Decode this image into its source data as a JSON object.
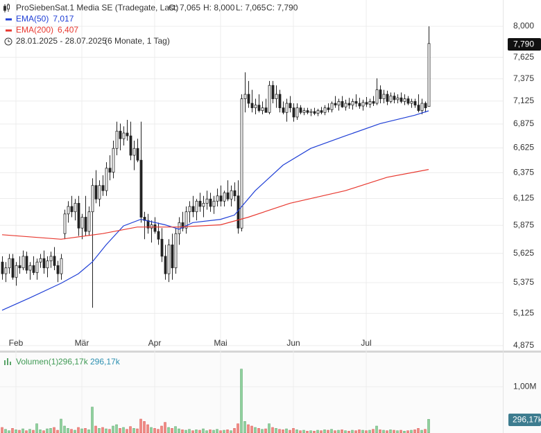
{
  "chart_data": [
    {
      "type": "candlestick",
      "title": "ProSiebenSat.1 Media SE (Tradegate, Last)",
      "ohlc_labels": [
        "O: 7,065",
        "H: 8,000",
        "L: 7,065",
        "C: 7,790"
      ],
      "date_range": "28.01.2025 - 28.07.2025",
      "period": "(6 Monate, 1 Tag)",
      "last_price_label": "7,790",
      "log_scale": true,
      "grid": true,
      "up_color": "#ffffff",
      "down_color": "#222222",
      "xlim": [
        -0.6,
        144.4
      ],
      "xticks": [
        {
          "value": 4,
          "label": "Feb"
        },
        {
          "value": 23,
          "label": "Mär"
        },
        {
          "value": 44,
          "label": "Apr"
        },
        {
          "value": 63,
          "label": "Mai"
        },
        {
          "value": 84,
          "label": "Jun"
        },
        {
          "value": 105,
          "label": "Jul"
        }
      ],
      "ylim": [
        4.843,
        8.334
      ],
      "yticks": [
        {
          "value": 8,
          "label": "8,000"
        },
        {
          "value": 7.625,
          "label": "7,625"
        },
        {
          "value": 7.375,
          "label": "7,375"
        },
        {
          "value": 7.125,
          "label": "7,125"
        },
        {
          "value": 6.875,
          "label": "6,875"
        },
        {
          "value": 6.625,
          "label": "6,625"
        },
        {
          "value": 6.375,
          "label": "6,375"
        },
        {
          "value": 6.125,
          "label": "6,125"
        },
        {
          "value": 5.875,
          "label": "5,875"
        },
        {
          "value": 5.625,
          "label": "5,625"
        },
        {
          "value": 5.375,
          "label": "5,375"
        },
        {
          "value": 5.125,
          "label": "5,125"
        },
        {
          "value": 4.875,
          "label": "4,875"
        }
      ],
      "ohlc": [
        [
          5.55,
          5.6,
          5.4,
          5.45
        ],
        [
          5.45,
          5.55,
          5.38,
          5.5
        ],
        [
          5.5,
          5.62,
          5.45,
          5.58
        ],
        [
          5.58,
          5.62,
          5.4,
          5.42
        ],
        [
          5.42,
          5.55,
          5.35,
          5.52
        ],
        [
          5.52,
          5.6,
          5.45,
          5.5
        ],
        [
          5.5,
          5.65,
          5.48,
          5.6
        ],
        [
          5.6,
          5.64,
          5.45,
          5.48
        ],
        [
          5.48,
          5.55,
          5.4,
          5.52
        ],
        [
          5.52,
          5.6,
          5.44,
          5.46
        ],
        [
          5.46,
          5.58,
          5.4,
          5.55
        ],
        [
          5.55,
          5.62,
          5.5,
          5.58
        ],
        [
          5.58,
          5.65,
          5.45,
          5.5
        ],
        [
          5.5,
          5.6,
          5.42,
          5.56
        ],
        [
          5.56,
          5.64,
          5.5,
          5.6
        ],
        [
          5.6,
          5.68,
          5.48,
          5.52
        ],
        [
          5.52,
          5.56,
          5.38,
          5.45
        ],
        [
          5.45,
          5.62,
          5.4,
          5.58
        ],
        [
          5.8,
          6.02,
          5.75,
          5.98
        ],
        [
          5.98,
          6.1,
          5.9,
          6.05
        ],
        [
          6.05,
          6.15,
          5.95,
          6.0
        ],
        [
          6.0,
          6.12,
          5.92,
          6.08
        ],
        [
          6.08,
          6.15,
          5.78,
          5.85
        ],
        [
          5.85,
          5.98,
          5.75,
          5.95
        ],
        [
          5.95,
          6.15,
          5.78,
          5.82
        ],
        [
          5.82,
          6.05,
          5.78,
          6.0
        ],
        [
          6.0,
          6.32,
          5.17,
          6.25
        ],
        [
          6.25,
          6.4,
          6.08,
          6.12
        ],
        [
          6.12,
          6.3,
          6.05,
          6.25
        ],
        [
          6.25,
          6.35,
          6.15,
          6.2
        ],
        [
          6.2,
          6.48,
          6.15,
          6.42
        ],
        [
          6.42,
          6.55,
          6.3,
          6.38
        ],
        [
          6.38,
          6.7,
          6.32,
          6.62
        ],
        [
          6.62,
          6.9,
          6.55,
          6.8
        ],
        [
          6.8,
          6.88,
          6.6,
          6.72
        ],
        [
          6.72,
          6.85,
          6.65,
          6.78
        ],
        [
          6.78,
          6.92,
          6.7,
          6.75
        ],
        [
          6.75,
          6.9,
          6.5,
          6.55
        ],
        [
          6.55,
          6.7,
          6.4,
          6.62
        ],
        [
          6.62,
          6.72,
          6.48,
          6.5
        ],
        [
          6.5,
          6.9,
          5.9,
          5.95
        ],
        [
          5.95,
          6.0,
          5.75,
          5.92
        ],
        [
          5.92,
          5.98,
          5.8,
          5.85
        ],
        [
          5.85,
          5.92,
          5.72,
          5.88
        ],
        [
          5.88,
          5.95,
          5.8,
          5.82
        ],
        [
          5.82,
          5.9,
          5.7,
          5.75
        ],
        [
          5.75,
          5.85,
          5.55,
          5.6
        ],
        [
          5.6,
          5.7,
          5.4,
          5.45
        ],
        [
          5.45,
          5.75,
          5.38,
          5.7
        ],
        [
          5.7,
          5.8,
          5.4,
          5.5
        ],
        [
          5.5,
          5.85,
          5.45,
          5.8
        ],
        [
          5.8,
          5.95,
          5.7,
          5.9
        ],
        [
          5.9,
          6.0,
          5.82,
          5.85
        ],
        [
          5.85,
          6.05,
          5.8,
          6.0
        ],
        [
          6.0,
          6.1,
          5.9,
          6.05
        ],
        [
          6.05,
          6.15,
          5.95,
          6.0
        ],
        [
          6.0,
          6.12,
          5.92,
          6.1
        ],
        [
          6.1,
          6.18,
          6.0,
          6.05
        ],
        [
          6.05,
          6.15,
          5.95,
          6.08
        ],
        [
          6.08,
          6.2,
          6.02,
          6.12
        ],
        [
          6.12,
          6.18,
          6.0,
          6.05
        ],
        [
          6.05,
          6.15,
          5.98,
          6.1
        ],
        [
          6.1,
          6.22,
          6.05,
          6.15
        ],
        [
          6.15,
          6.25,
          6.05,
          6.1
        ],
        [
          6.1,
          6.2,
          6.05,
          6.18
        ],
        [
          6.18,
          6.3,
          6.1,
          6.12
        ],
        [
          6.12,
          6.25,
          6.05,
          6.2
        ],
        [
          6.2,
          6.28,
          6.1,
          6.15
        ],
        [
          6.15,
          6.3,
          5.8,
          5.85
        ],
        [
          5.85,
          7.2,
          5.82,
          7.15
        ],
        [
          7.15,
          7.45,
          7.0,
          7.2
        ],
        [
          7.2,
          7.35,
          7.05,
          7.1
        ],
        [
          7.1,
          7.25,
          7.0,
          7.05
        ],
        [
          7.05,
          7.15,
          6.98,
          7.08
        ],
        [
          7.08,
          7.2,
          7.0,
          7.02
        ],
        [
          7.02,
          7.12,
          6.98,
          7.05
        ],
        [
          7.05,
          7.15,
          7.0,
          7.0
        ],
        [
          7.0,
          7.35,
          6.98,
          7.3
        ],
        [
          7.3,
          7.35,
          7.1,
          7.15
        ],
        [
          7.15,
          7.3,
          7.05,
          7.2
        ],
        [
          7.2,
          7.25,
          7.0,
          7.05
        ],
        [
          7.05,
          7.12,
          6.98,
          7.0
        ],
        [
          7.0,
          7.15,
          6.9,
          7.1
        ],
        [
          7.1,
          7.18,
          7.0,
          7.05
        ],
        [
          7.05,
          7.1,
          6.9,
          6.95
        ],
        [
          6.95,
          7.1,
          6.92,
          7.05
        ],
        [
          7.05,
          7.08,
          6.98,
          7.0
        ],
        [
          7.0,
          7.05,
          6.97,
          7.02
        ],
        [
          7.02,
          7.05,
          6.98,
          7.0
        ],
        [
          7.0,
          7.04,
          6.96,
          7.01
        ],
        [
          7.01,
          7.05,
          6.97,
          6.99
        ],
        [
          6.99,
          7.04,
          6.96,
          7.02
        ],
        [
          7.02,
          7.06,
          6.98,
          7.0
        ],
        [
          7.0,
          7.08,
          6.97,
          7.05
        ],
        [
          7.05,
          7.1,
          7.0,
          7.03
        ],
        [
          7.03,
          7.12,
          7.0,
          7.1
        ],
        [
          7.1,
          7.18,
          7.05,
          7.08
        ],
        [
          7.08,
          7.15,
          7.02,
          7.12
        ],
        [
          7.12,
          7.18,
          7.05,
          7.06
        ],
        [
          7.06,
          7.14,
          7.02,
          7.1
        ],
        [
          7.1,
          7.16,
          7.04,
          7.08
        ],
        [
          7.08,
          7.15,
          7.03,
          7.12
        ],
        [
          7.12,
          7.2,
          7.06,
          7.1
        ],
        [
          7.1,
          7.16,
          7.04,
          7.07
        ],
        [
          7.07,
          7.14,
          7.02,
          7.11
        ],
        [
          7.11,
          7.17,
          7.06,
          7.09
        ],
        [
          7.09,
          7.15,
          7.05,
          7.12
        ],
        [
          7.12,
          7.18,
          7.07,
          7.1
        ],
        [
          7.1,
          7.38,
          7.08,
          7.25
        ],
        [
          7.25,
          7.3,
          7.1,
          7.15
        ],
        [
          7.15,
          7.25,
          7.1,
          7.2
        ],
        [
          7.2,
          7.24,
          7.08,
          7.12
        ],
        [
          7.12,
          7.22,
          7.1,
          7.18
        ],
        [
          7.18,
          7.22,
          7.1,
          7.14
        ],
        [
          7.14,
          7.2,
          7.1,
          7.16
        ],
        [
          7.16,
          7.22,
          7.1,
          7.12
        ],
        [
          7.12,
          7.2,
          7.08,
          7.15
        ],
        [
          7.15,
          7.18,
          7.08,
          7.1
        ],
        [
          7.1,
          7.15,
          7.05,
          7.12
        ],
        [
          7.12,
          7.15,
          7.05,
          7.08
        ],
        [
          7.08,
          7.2,
          7.0,
          7.02
        ],
        [
          7.02,
          7.15,
          6.98,
          7.1
        ],
        [
          7.1,
          7.12,
          7.0,
          7.05
        ],
        [
          7.065,
          8.0,
          7.065,
          7.79
        ]
      ],
      "series": [
        {
          "name": "EMA(50)",
          "color": "#1f3fd6",
          "last_label": "7,017",
          "x": [
            0,
            8,
            17,
            22,
            26,
            30,
            35,
            40,
            47,
            51,
            55,
            63,
            67,
            73,
            81,
            89,
            99,
            109,
            119,
            123
          ],
          "values": [
            5.15,
            5.25,
            5.37,
            5.45,
            5.55,
            5.7,
            5.87,
            5.93,
            5.88,
            5.84,
            5.9,
            5.93,
            5.97,
            6.2,
            6.45,
            6.62,
            6.75,
            6.88,
            6.97,
            7.017
          ]
        },
        {
          "name": "EMA(200)",
          "color": "#e8382f",
          "last_label": "6,407",
          "x": [
            0,
            17,
            29,
            39,
            51,
            63,
            71,
            83,
            99,
            111,
            123
          ],
          "values": [
            5.79,
            5.75,
            5.8,
            5.86,
            5.86,
            5.88,
            5.95,
            6.08,
            6.2,
            6.33,
            6.407
          ]
        }
      ]
    },
    {
      "type": "volume",
      "title": "Volumen(1)",
      "legend_value": "296,17k",
      "legend_value_2": "296,17k",
      "axis_value_label": "296,17k",
      "up_color": "#8fd19e",
      "down_color": "#f08a84",
      "xlim": [
        -0.6,
        144.4
      ],
      "ylim": [
        0,
        1.69
      ],
      "yticks": [
        {
          "value": 1,
          "label": "1,00M"
        }
      ],
      "values": [
        0.12,
        0.08,
        0.05,
        0.1,
        0.07,
        0.06,
        0.09,
        0.05,
        0.08,
        0.06,
        0.2,
        0.07,
        0.05,
        0.09,
        0.1,
        0.12,
        0.06,
        0.3,
        0.15,
        0.1,
        0.08,
        0.06,
        0.12,
        0.09,
        0.1,
        0.07,
        0.56,
        0.15,
        0.1,
        0.12,
        0.09,
        0.08,
        0.15,
        0.18,
        0.1,
        0.12,
        0.08,
        0.14,
        0.1,
        0.09,
        0.3,
        0.25,
        0.18,
        0.12,
        0.1,
        0.08,
        0.15,
        0.23,
        0.12,
        0.1,
        0.14,
        0.09,
        0.07,
        0.06,
        0.08,
        0.05,
        0.07,
        0.06,
        0.09,
        0.05,
        0.07,
        0.06,
        0.08,
        0.05,
        0.06,
        0.07,
        0.05,
        0.1,
        0.2,
        1.38,
        0.25,
        0.18,
        0.15,
        0.12,
        0.1,
        0.08,
        0.09,
        0.2,
        0.12,
        0.1,
        0.08,
        0.07,
        0.09,
        0.06,
        0.1,
        0.07,
        0.05,
        0.06,
        0.04,
        0.05,
        0.04,
        0.06,
        0.05,
        0.07,
        0.06,
        0.08,
        0.05,
        0.06,
        0.07,
        0.05,
        0.04,
        0.06,
        0.05,
        0.07,
        0.06,
        0.05,
        0.06,
        0.08,
        0.15,
        0.07,
        0.06,
        0.05,
        0.07,
        0.06,
        0.05,
        0.06,
        0.04,
        0.05,
        0.06,
        0.07,
        0.1,
        0.06,
        0.08,
        0.29617
      ]
    }
  ]
}
